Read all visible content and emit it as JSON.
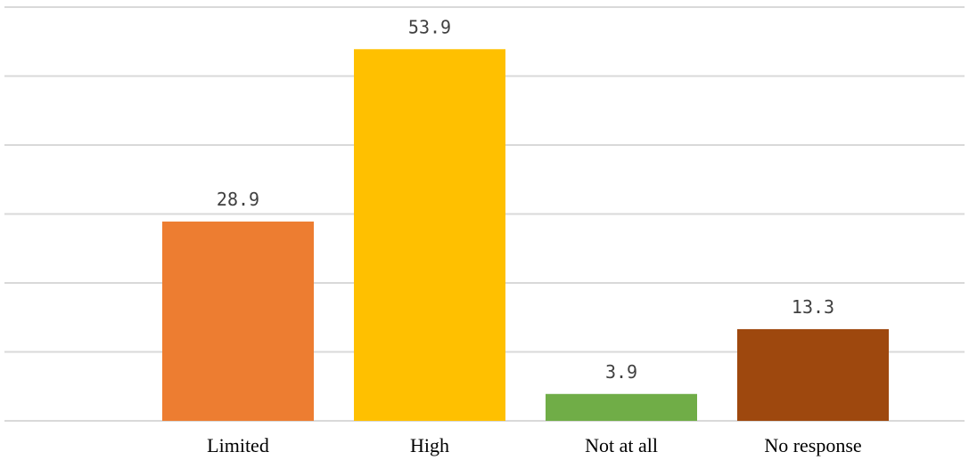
{
  "chart_data": {
    "type": "bar",
    "title": "",
    "xlabel": "",
    "ylabel": "",
    "categories": [
      "Limited",
      "High",
      "Not at all",
      "No response"
    ],
    "values": [
      28.9,
      53.9,
      3.9,
      13.3
    ],
    "value_labels": [
      "28.9",
      "53.9",
      "3.9",
      "13.3"
    ],
    "colors": [
      "#ED7D31",
      "#FFC000",
      "#70AD47",
      "#9E480E"
    ],
    "ylim": [
      0,
      60
    ],
    "gridlines": [
      0,
      10,
      20,
      30,
      40,
      50,
      60
    ],
    "grid": true,
    "legend": "none"
  }
}
